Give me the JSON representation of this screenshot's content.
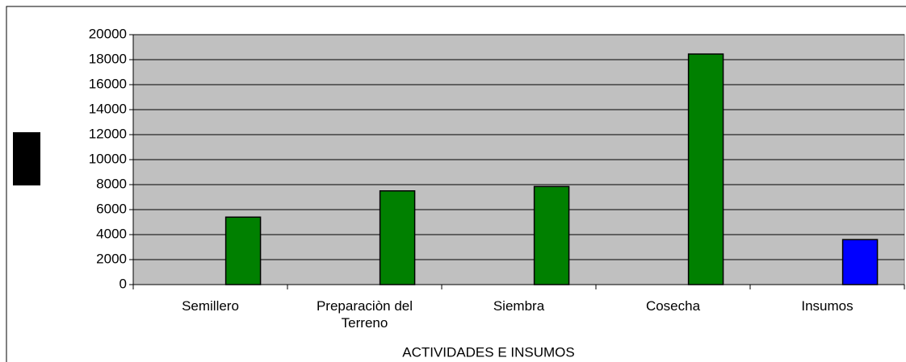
{
  "chart_data": {
    "type": "bar",
    "x_label": "ACTIVIDADES E INSUMOS",
    "categories": [
      "Semillero",
      "Preparaciòn del Terreno",
      "Siembra",
      "Cosecha",
      "Insumos"
    ],
    "values": [
      5400,
      7500,
      7850,
      18450,
      3600
    ],
    "colors": [
      "#008000",
      "#008000",
      "#008000",
      "#008000",
      "#0000ff"
    ],
    "ylim": [
      0,
      20000
    ],
    "yticks": [
      0,
      2000,
      4000,
      6000,
      8000,
      10000,
      12000,
      14000,
      16000,
      18000,
      20000
    ],
    "grid": true
  }
}
